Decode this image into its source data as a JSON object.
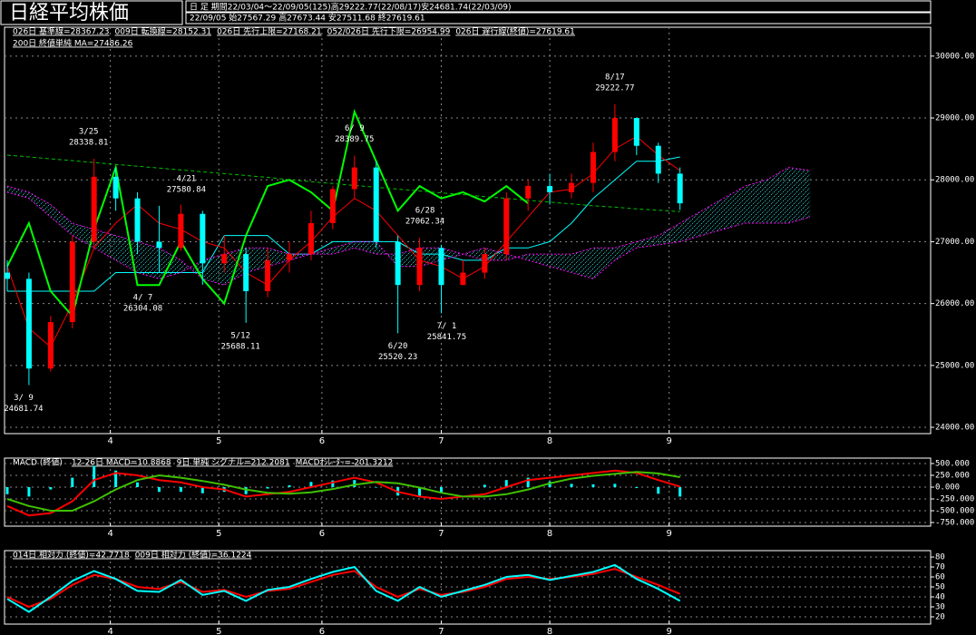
{
  "chart_data": [
    {
      "type": "candlestick",
      "title": "日経平均株価",
      "header": [
        "日 足  期間22/03/04～22/09/05(125)高29222.77(22/08/17)安24681.74(22/03/09)",
        "22/09/05  始27567.29 高27673.44 安27511.68 終27619.61"
      ],
      "x": [
        0,
        4,
        8,
        12,
        16,
        20,
        24,
        28,
        32,
        36,
        40,
        44,
        48,
        52,
        56,
        60,
        64,
        68,
        72,
        76,
        80,
        84,
        88,
        92,
        96,
        100,
        104,
        108,
        112,
        116,
        120,
        124
      ],
      "xlim": [
        -0.5,
        170.2
      ],
      "xticks": [
        {
          "value": 19,
          "label": "4"
        },
        {
          "value": 39,
          "label": "5"
        },
        {
          "value": 58,
          "label": "6"
        },
        {
          "value": 80,
          "label": "7"
        },
        {
          "value": 100,
          "label": "8"
        },
        {
          "value": 122,
          "label": "9"
        }
      ],
      "ylim": [
        23898,
        30467
      ],
      "yticks": [
        {
          "value": 30000,
          "label": "30000.00"
        },
        {
          "value": 29000,
          "label": "29000.00"
        },
        {
          "value": 28000,
          "label": "28000.00"
        },
        {
          "value": 27000,
          "label": "27000.00"
        },
        {
          "value": 26000,
          "label": "26000.00"
        },
        {
          "value": 25000,
          "label": "25000.00"
        },
        {
          "value": 24000,
          "label": "24000.00"
        }
      ],
      "grid": true,
      "up_color": "#ff0000",
      "down_color": "#00ffff",
      "open": [
        26500,
        26400,
        24950,
        25700,
        27000,
        28050,
        27700,
        27000,
        26900,
        27450,
        26650,
        26800,
        26200,
        26700,
        26800,
        27300,
        27850,
        28200,
        27000,
        26300,
        26900,
        26300,
        26500,
        26800,
        27700,
        27900,
        27800,
        27950,
        28450,
        29000,
        28550,
        28100
      ],
      "high": [
        26700,
        26500,
        25800,
        27100,
        28340,
        28200,
        27800,
        27580,
        27600,
        27500,
        27100,
        26900,
        26900,
        27000,
        27500,
        27900,
        28390,
        28300,
        27100,
        27062,
        26950,
        26700,
        26900,
        27800,
        28000,
        28100,
        28100,
        28600,
        29223,
        29000,
        28600,
        28200
      ],
      "low": [
        26200,
        24682,
        24900,
        25600,
        26900,
        27500,
        26800,
        26500,
        26850,
        26304,
        26500,
        25688,
        26100,
        26500,
        26700,
        27200,
        27700,
        26900,
        25520,
        26200,
        25842,
        26300,
        26400,
        26700,
        27500,
        27600,
        27700,
        27800,
        28300,
        28400,
        27950,
        27512
      ],
      "close": [
        26400,
        24950,
        25700,
        27000,
        28050,
        27700,
        27000,
        26900,
        27450,
        26650,
        26800,
        26200,
        26700,
        26800,
        27300,
        27850,
        28200,
        27000,
        26300,
        26900,
        26300,
        26500,
        26800,
        27700,
        27900,
        27800,
        27950,
        28450,
        29000,
        28550,
        28100,
        27620
      ],
      "series": [
        {
          "name": "026日 基準線=28367.23",
          "color": "#00ffff",
          "values": [
            26200,
            26200,
            26200,
            26200,
            26200,
            26500,
            26500,
            26500,
            26500,
            26500,
            27100,
            27100,
            27100,
            26800,
            26800,
            27000,
            27000,
            27000,
            27000,
            26800,
            26800,
            26700,
            26700,
            26900,
            26900,
            27000,
            27300,
            27700,
            28000,
            28300,
            28300,
            28370
          ]
        },
        {
          "name": "009日 転換線=28152.31",
          "color": "#ff0000",
          "values": [
            26600,
            25600,
            25300,
            26000,
            26900,
            27300,
            27600,
            27300,
            27200,
            27000,
            26900,
            26500,
            26300,
            26700,
            27000,
            27400,
            27700,
            27500,
            27100,
            26700,
            26600,
            26400,
            26600,
            27000,
            27400,
            27800,
            27850,
            28100,
            28500,
            28700,
            28400,
            28150
          ]
        },
        {
          "name": "026日 先行上限=27168.21",
          "color": "#ff00ff",
          "x": [
            0,
            4,
            8,
            12,
            16,
            20,
            24,
            28,
            32,
            36,
            40,
            44,
            48,
            52,
            56,
            60,
            64,
            68,
            72,
            76,
            80,
            84,
            88,
            92,
            96,
            100,
            104,
            108,
            112,
            116,
            120,
            124,
            128,
            132,
            136,
            140,
            144,
            148
          ],
          "values": [
            27800,
            27700,
            27400,
            27100,
            26900,
            26700,
            26500,
            26400,
            26500,
            26700,
            26800,
            26900,
            26900,
            26800,
            26800,
            26800,
            26900,
            26800,
            26800,
            26900,
            26900,
            26800,
            26700,
            26700,
            26800,
            26800,
            26800,
            26900,
            26900,
            27000,
            27100,
            27300,
            27500,
            27700,
            27900,
            28000,
            28200,
            28150
          ]
        },
        {
          "name": "052/026日 先行下限=26954.99",
          "color": "#ff00ff",
          "x": [
            0,
            4,
            8,
            12,
            16,
            20,
            24,
            28,
            32,
            36,
            40,
            44,
            48,
            52,
            56,
            60,
            64,
            68,
            72,
            76,
            80,
            84,
            88,
            92,
            96,
            100,
            104,
            108,
            112,
            116,
            120,
            124,
            128,
            132,
            136,
            140,
            144,
            148
          ],
          "values": [
            27900,
            27800,
            27600,
            27300,
            27200,
            27100,
            27000,
            26900,
            26700,
            26400,
            26300,
            26500,
            26600,
            26700,
            26800,
            26900,
            27000,
            27000,
            26600,
            26600,
            26700,
            26800,
            26900,
            26800,
            26700,
            26600,
            26500,
            26400,
            26700,
            26900,
            26950,
            27000,
            27100,
            27200,
            27300,
            27300,
            27300,
            27400
          ]
        },
        {
          "name": "026日 遅行線(終値)=27619.61",
          "color": "#00ff00",
          "x": [
            0,
            4,
            8,
            12,
            16,
            20,
            24,
            28,
            32,
            36,
            40,
            44,
            48,
            52,
            56,
            60,
            64,
            68,
            72,
            76,
            80,
            84,
            88,
            92,
            96
          ],
          "values": [
            26600,
            27300,
            26200,
            25800,
            27200,
            28200,
            26300,
            26300,
            27000,
            26400,
            26000,
            27100,
            27900,
            28000,
            27800,
            27500,
            29100,
            28300,
            27500,
            27900,
            27700,
            27800,
            27650,
            27900,
            27620
          ]
        },
        {
          "name": "200日 終値単純 MA=27486.26",
          "color": "#00c000",
          "values": [
            28400,
            28370,
            28340,
            28310,
            28280,
            28250,
            28220,
            28190,
            28160,
            28130,
            28100,
            28070,
            28040,
            28000,
            27970,
            27940,
            27910,
            27880,
            27850,
            27820,
            27790,
            27760,
            27730,
            27700,
            27670,
            27640,
            27610,
            27580,
            27560,
            27530,
            27510,
            27486
          ]
        }
      ],
      "annotations": [
        {
          "date": "3/25",
          "value": 28338.81,
          "x": 15,
          "kind": "high"
        },
        {
          "date": "4/21",
          "value": 27580.84,
          "x": 33,
          "kind": "high"
        },
        {
          "date": "6/ 9",
          "value": 28389.75,
          "x": 64,
          "kind": "high"
        },
        {
          "date": "6/28",
          "value": 27062.34,
          "x": 77,
          "kind": "high"
        },
        {
          "date": "8/17",
          "value": 29222.77,
          "x": 112,
          "kind": "high"
        },
        {
          "date": "3/ 9",
          "value": 24681.74,
          "x": 3,
          "kind": "low"
        },
        {
          "date": "4/ 7",
          "value": 26304.08,
          "x": 25,
          "kind": "low"
        },
        {
          "date": "5/12",
          "value": 25688.11,
          "x": 43,
          "kind": "low"
        },
        {
          "date": "6/20",
          "value": 25520.23,
          "x": 72,
          "kind": "low"
        },
        {
          "date": "7/ 1",
          "value": 25841.75,
          "x": 81,
          "kind": "low"
        }
      ]
    },
    {
      "type": "line",
      "title": "MACD (終値)",
      "x": [
        0,
        4,
        8,
        12,
        16,
        20,
        24,
        28,
        32,
        36,
        40,
        44,
        48,
        52,
        56,
        60,
        64,
        68,
        72,
        76,
        80,
        84,
        88,
        92,
        96,
        100,
        104,
        108,
        112,
        116,
        120,
        124
      ],
      "ylim": [
        -827,
        615
      ],
      "yticks": [
        {
          "value": 500,
          "label": "500.000"
        },
        {
          "value": 250,
          "label": "250.000"
        },
        {
          "value": 0,
          "label": "0.000"
        },
        {
          "value": -250,
          "label": "-250.000"
        },
        {
          "value": -500,
          "label": "-500.000"
        },
        {
          "value": -750,
          "label": "-750.000"
        }
      ],
      "grid": true,
      "series": [
        {
          "name": "12-26日 MACD=10.8868",
          "color": "#ff0000",
          "values": [
            -400,
            -600,
            -550,
            -300,
            150,
            300,
            250,
            150,
            100,
            0,
            -50,
            -200,
            -150,
            -100,
            0,
            100,
            200,
            100,
            -100,
            -200,
            -250,
            -200,
            -150,
            0,
            150,
            200,
            250,
            300,
            350,
            300,
            150,
            11
          ]
        },
        {
          "name": "9日 単純 シグナル=212.2081",
          "color": "#40c000",
          "values": [
            -250,
            -400,
            -500,
            -500,
            -300,
            -50,
            150,
            250,
            200,
            130,
            50,
            -50,
            -120,
            -140,
            -110,
            -40,
            50,
            110,
            80,
            -10,
            -120,
            -200,
            -200,
            -150,
            -50,
            80,
            180,
            240,
            280,
            320,
            290,
            212
          ]
        },
        {
          "name": "MACDｵｼﾚｰﾀｰ=-201.3212",
          "color": "#00ffff",
          "style": "bar",
          "values": [
            -150,
            -200,
            -50,
            200,
            450,
            350,
            100,
            -100,
            -100,
            -130,
            -100,
            -150,
            -30,
            40,
            110,
            140,
            150,
            -10,
            -180,
            -190,
            -130,
            0,
            50,
            150,
            200,
            120,
            70,
            60,
            70,
            -20,
            -140,
            -201
          ]
        }
      ]
    },
    {
      "type": "line",
      "x": [
        0,
        4,
        8,
        12,
        16,
        20,
        24,
        28,
        32,
        36,
        40,
        44,
        48,
        52,
        56,
        60,
        64,
        68,
        72,
        76,
        80,
        84,
        88,
        92,
        96,
        100,
        104,
        108,
        112,
        116,
        120,
        124
      ],
      "ylim": [
        12.7,
        86.4
      ],
      "yticks": [
        80,
        70,
        60,
        50,
        40,
        30,
        20
      ],
      "grid": true,
      "series": [
        {
          "name": "014日 相対力 (終値)=42.7718",
          "color": "#ff0000",
          "values": [
            40,
            30,
            38,
            52,
            62,
            58,
            50,
            48,
            55,
            45,
            47,
            40,
            46,
            48,
            55,
            62,
            66,
            50,
            40,
            48,
            42,
            45,
            50,
            58,
            60,
            58,
            60,
            63,
            68,
            60,
            52,
            43
          ]
        },
        {
          "name": "009日 相対力 (終値)=36.1224",
          "color": "#00ffff",
          "values": [
            38,
            25,
            40,
            56,
            66,
            58,
            46,
            45,
            57,
            42,
            46,
            36,
            47,
            50,
            58,
            65,
            70,
            46,
            36,
            50,
            40,
            46,
            52,
            60,
            62,
            57,
            61,
            65,
            72,
            58,
            48,
            36
          ]
        }
      ]
    }
  ]
}
